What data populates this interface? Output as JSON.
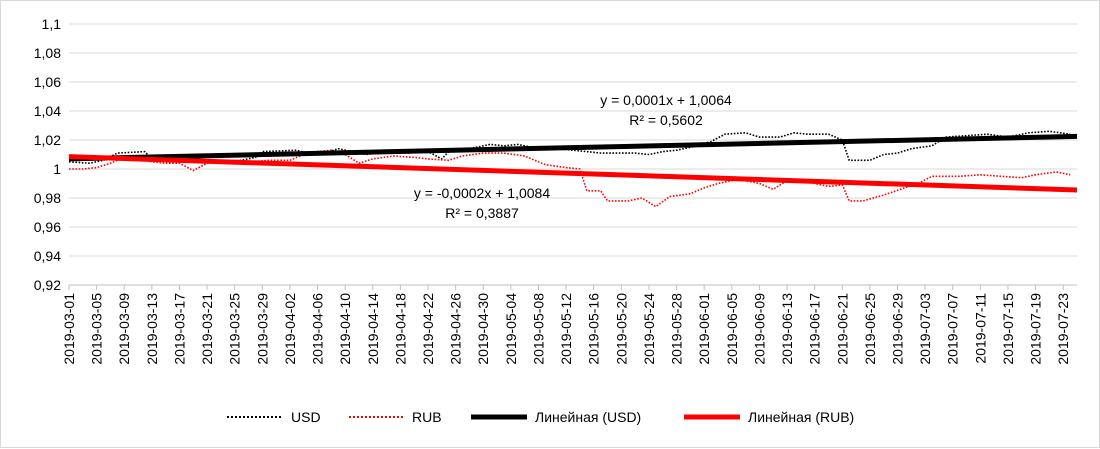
{
  "chart_data": {
    "type": "line",
    "ylim": [
      0.92,
      1.1
    ],
    "yticks": [
      "0,92",
      "0,94",
      "0,96",
      "0,98",
      "1",
      "1,02",
      "1,04",
      "1,06",
      "1,08",
      "1,1"
    ],
    "ytick_values": [
      0.92,
      0.94,
      0.96,
      0.98,
      1.0,
      1.02,
      1.04,
      1.06,
      1.08,
      1.1
    ],
    "xticks": [
      "2019-03-01",
      "2019-03-05",
      "2019-03-09",
      "2019-03-13",
      "2019-03-17",
      "2019-03-21",
      "2019-03-25",
      "2019-03-29",
      "2019-04-02",
      "2019-04-06",
      "2019-04-10",
      "2019-04-14",
      "2019-04-18",
      "2019-04-22",
      "2019-04-26",
      "2019-04-30",
      "2019-05-04",
      "2019-05-08",
      "2019-05-12",
      "2019-05-16",
      "2019-05-20",
      "2019-05-24",
      "2019-05-28",
      "2019-06-01",
      "2019-06-05",
      "2019-06-09",
      "2019-06-13",
      "2019-06-17",
      "2019-06-21",
      "2019-06-25",
      "2019-06-29",
      "2019-07-03",
      "2019-07-07",
      "2019-07-11",
      "2019-07-15",
      "2019-07-19",
      "2019-07-23"
    ],
    "x_range": [
      "2019-03-01",
      "2019-07-25"
    ],
    "grid": "horizontal",
    "legend_position": "bottom",
    "colors": {
      "usd": "#000000",
      "rub": "#ff0000"
    },
    "series": [
      {
        "name": "USD",
        "style": "dotted",
        "color": "#000000",
        "points": [
          [
            "2019-03-01",
            1.005
          ],
          [
            "2019-03-04",
            1.004
          ],
          [
            "2019-03-06",
            1.006
          ],
          [
            "2019-03-08",
            1.011
          ],
          [
            "2019-03-12",
            1.012
          ],
          [
            "2019-03-13",
            1.007
          ],
          [
            "2019-03-18",
            1.007
          ],
          [
            "2019-03-20",
            1.006
          ],
          [
            "2019-03-22",
            1.005
          ],
          [
            "2019-03-26",
            1.006
          ],
          [
            "2019-03-28",
            1.008
          ],
          [
            "2019-03-29",
            1.012
          ],
          [
            "2019-04-03",
            1.013
          ],
          [
            "2019-04-05",
            1.01
          ],
          [
            "2019-04-07",
            1.011
          ],
          [
            "2019-04-09",
            1.014
          ],
          [
            "2019-04-11",
            1.012
          ],
          [
            "2019-04-13",
            1.01
          ],
          [
            "2019-04-16",
            1.012
          ],
          [
            "2019-04-19",
            1.011
          ],
          [
            "2019-04-22",
            1.012
          ],
          [
            "2019-04-24",
            1.007
          ],
          [
            "2019-04-25",
            1.012
          ],
          [
            "2019-04-27",
            1.013
          ],
          [
            "2019-04-29",
            1.015
          ],
          [
            "2019-05-01",
            1.017
          ],
          [
            "2019-05-03",
            1.016
          ],
          [
            "2019-05-05",
            1.017
          ],
          [
            "2019-05-07",
            1.015
          ],
          [
            "2019-05-11",
            1.014
          ],
          [
            "2019-05-13",
            1.013
          ],
          [
            "2019-05-15",
            1.012
          ],
          [
            "2019-05-17",
            1.011
          ],
          [
            "2019-05-22",
            1.011
          ],
          [
            "2019-05-24",
            1.01
          ],
          [
            "2019-05-26",
            1.012
          ],
          [
            "2019-05-28",
            1.013
          ],
          [
            "2019-05-31",
            1.016
          ],
          [
            "2019-06-02",
            1.019
          ],
          [
            "2019-06-04",
            1.024
          ],
          [
            "2019-06-07",
            1.025
          ],
          [
            "2019-06-09",
            1.022
          ],
          [
            "2019-06-12",
            1.022
          ],
          [
            "2019-06-14",
            1.025
          ],
          [
            "2019-06-16",
            1.024
          ],
          [
            "2019-06-19",
            1.024
          ],
          [
            "2019-06-21",
            1.02
          ],
          [
            "2019-06-22",
            1.006
          ],
          [
            "2019-06-25",
            1.006
          ],
          [
            "2019-06-27",
            1.01
          ],
          [
            "2019-06-29",
            1.011
          ],
          [
            "2019-07-01",
            1.014
          ],
          [
            "2019-07-04",
            1.016
          ],
          [
            "2019-07-06",
            1.022
          ],
          [
            "2019-07-09",
            1.023
          ],
          [
            "2019-07-12",
            1.024
          ],
          [
            "2019-07-15",
            1.022
          ],
          [
            "2019-07-18",
            1.025
          ],
          [
            "2019-07-21",
            1.026
          ],
          [
            "2019-07-24",
            1.024
          ]
        ]
      },
      {
        "name": "RUB",
        "style": "dotted",
        "color": "#ff0000",
        "points": [
          [
            "2019-03-01",
            1.0
          ],
          [
            "2019-03-03",
            1.0
          ],
          [
            "2019-03-05",
            1.001
          ],
          [
            "2019-03-07",
            1.004
          ],
          [
            "2019-03-09",
            1.008
          ],
          [
            "2019-03-11",
            1.007
          ],
          [
            "2019-03-13",
            1.005
          ],
          [
            "2019-03-15",
            1.004
          ],
          [
            "2019-03-17",
            1.004
          ],
          [
            "2019-03-19",
            0.999
          ],
          [
            "2019-03-21",
            1.004
          ],
          [
            "2019-03-24",
            1.006
          ],
          [
            "2019-03-27",
            1.005
          ],
          [
            "2019-03-30",
            1.006
          ],
          [
            "2019-04-02",
            1.006
          ],
          [
            "2019-04-04",
            1.01
          ],
          [
            "2019-04-06",
            1.012
          ],
          [
            "2019-04-08",
            1.013
          ],
          [
            "2019-04-10",
            1.01
          ],
          [
            "2019-04-12",
            1.004
          ],
          [
            "2019-04-14",
            1.007
          ],
          [
            "2019-04-17",
            1.009
          ],
          [
            "2019-04-20",
            1.008
          ],
          [
            "2019-04-22",
            1.007
          ],
          [
            "2019-04-25",
            1.006
          ],
          [
            "2019-04-27",
            1.009
          ],
          [
            "2019-04-30",
            1.011
          ],
          [
            "2019-05-03",
            1.011
          ],
          [
            "2019-05-06",
            1.009
          ],
          [
            "2019-05-09",
            1.003
          ],
          [
            "2019-05-12",
            1.001
          ],
          [
            "2019-05-14",
            1.0
          ],
          [
            "2019-05-15",
            0.985
          ],
          [
            "2019-05-17",
            0.985
          ],
          [
            "2019-05-18",
            0.978
          ],
          [
            "2019-05-21",
            0.978
          ],
          [
            "2019-05-23",
            0.98
          ],
          [
            "2019-05-25",
            0.974
          ],
          [
            "2019-05-27",
            0.981
          ],
          [
            "2019-05-30",
            0.983
          ],
          [
            "2019-06-01",
            0.987
          ],
          [
            "2019-06-03",
            0.99
          ],
          [
            "2019-06-06",
            0.993
          ],
          [
            "2019-06-09",
            0.99
          ],
          [
            "2019-06-11",
            0.986
          ],
          [
            "2019-06-13",
            0.992
          ],
          [
            "2019-06-16",
            0.991
          ],
          [
            "2019-06-19",
            0.988
          ],
          [
            "2019-06-21",
            0.989
          ],
          [
            "2019-06-22",
            0.978
          ],
          [
            "2019-06-24",
            0.978
          ],
          [
            "2019-06-27",
            0.982
          ],
          [
            "2019-06-30",
            0.987
          ],
          [
            "2019-07-02",
            0.99
          ],
          [
            "2019-07-04",
            0.995
          ],
          [
            "2019-07-08",
            0.995
          ],
          [
            "2019-07-11",
            0.996
          ],
          [
            "2019-07-14",
            0.995
          ],
          [
            "2019-07-17",
            0.994
          ],
          [
            "2019-07-19",
            0.996
          ],
          [
            "2019-07-22",
            0.998
          ],
          [
            "2019-07-24",
            0.996
          ]
        ]
      },
      {
        "name": "Линейная (USD)",
        "style": "trendline",
        "color": "#000000",
        "from": [
          "2019-03-01",
          1.007
        ],
        "to": [
          "2019-07-25",
          1.0225
        ]
      },
      {
        "name": "Линейная (RUB)",
        "style": "trendline",
        "color": "#ff0000",
        "from": [
          "2019-03-01",
          1.0085
        ],
        "to": [
          "2019-07-25",
          0.9855
        ]
      }
    ],
    "annotations": [
      {
        "line1": "y = 0,0001x + 1,0064",
        "line2": "R² = 0,5602"
      },
      {
        "line1": "y = -0,0002x + 1,0084",
        "line2": "R² = 0,3887"
      }
    ],
    "legend": [
      "USD",
      "RUB",
      "Линейная (USD)",
      "Линейная (RUB)"
    ]
  }
}
